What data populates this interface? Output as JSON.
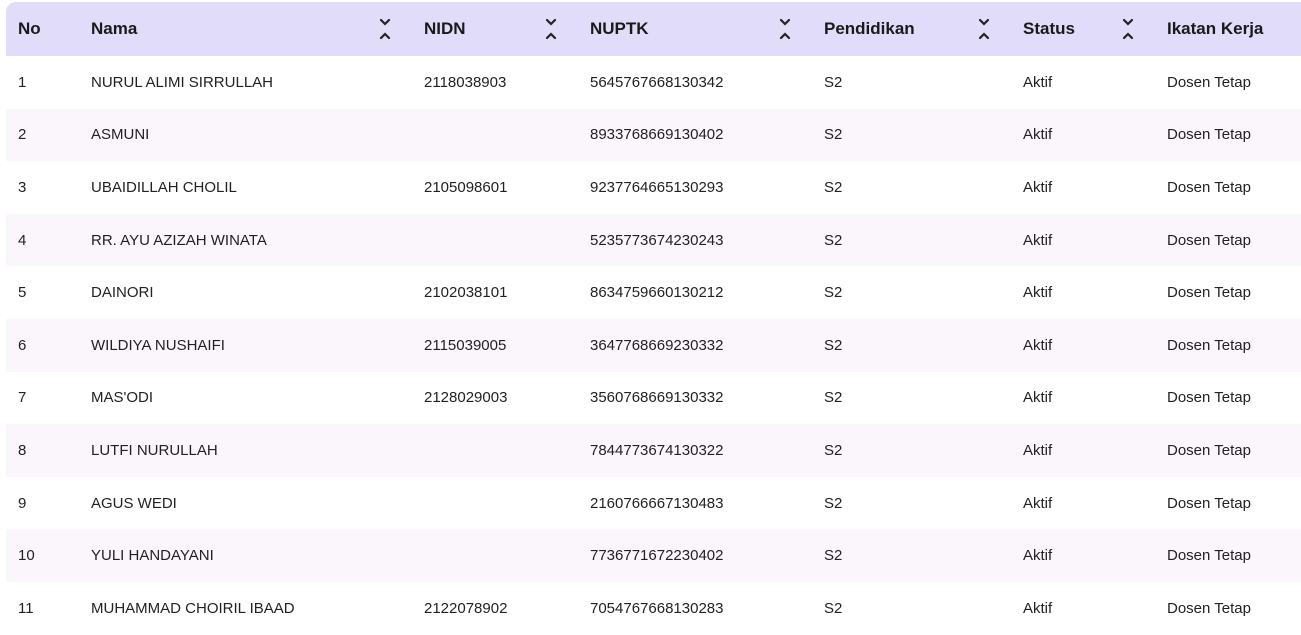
{
  "table": {
    "columns": [
      {
        "label": "No",
        "sortable": false
      },
      {
        "label": "Nama",
        "sortable": true
      },
      {
        "label": "NIDN",
        "sortable": true
      },
      {
        "label": "NUPTK",
        "sortable": true
      },
      {
        "label": "Pendidikan",
        "sortable": true
      },
      {
        "label": "Status",
        "sortable": true
      },
      {
        "label": "Ikatan Kerja",
        "sortable": false
      }
    ],
    "sort_icon": "sort-toggle-icon",
    "colors": {
      "header_bg": "#e0dcfa",
      "stripe_bg": "#fbf5fc"
    },
    "rows": [
      [
        "1",
        "NURUL ALIMI SIRRULLAH",
        "2118038903",
        "5645767668130342",
        "S2",
        "Aktif",
        "Dosen Tetap"
      ],
      [
        "2",
        "ASMUNI",
        "",
        "8933768669130402",
        "S2",
        "Aktif",
        "Dosen Tetap"
      ],
      [
        "3",
        "UBAIDILLAH CHOLIL",
        "2105098601",
        "9237764665130293",
        "S2",
        "Aktif",
        "Dosen Tetap"
      ],
      [
        "4",
        "RR. AYU AZIZAH WINATA",
        "",
        "5235773674230243",
        "S2",
        "Aktif",
        "Dosen Tetap"
      ],
      [
        "5",
        "DAINORI",
        "2102038101",
        "8634759660130212",
        "S2",
        "Aktif",
        "Dosen Tetap"
      ],
      [
        "6",
        "WILDIYA NUSHAIFI",
        "2115039005",
        "3647768669230332",
        "S2",
        "Aktif",
        "Dosen Tetap"
      ],
      [
        "7",
        "MAS'ODI",
        "2128029003",
        "3560768669130332",
        "S2",
        "Aktif",
        "Dosen Tetap"
      ],
      [
        "8",
        "LUTFI NURULLAH",
        "",
        "7844773674130322",
        "S2",
        "Aktif",
        "Dosen Tetap"
      ],
      [
        "9",
        "AGUS WEDI",
        "",
        "2160766667130483",
        "S2",
        "Aktif",
        "Dosen Tetap"
      ],
      [
        "10",
        "YULI HANDAYANI",
        "",
        "7736771672230402",
        "S2",
        "Aktif",
        "Dosen Tetap"
      ],
      [
        "11",
        "MUHAMMAD CHOIRIL IBAAD",
        "2122078902",
        "7054767668130283",
        "S2",
        "Aktif",
        "Dosen Tetap"
      ]
    ]
  }
}
